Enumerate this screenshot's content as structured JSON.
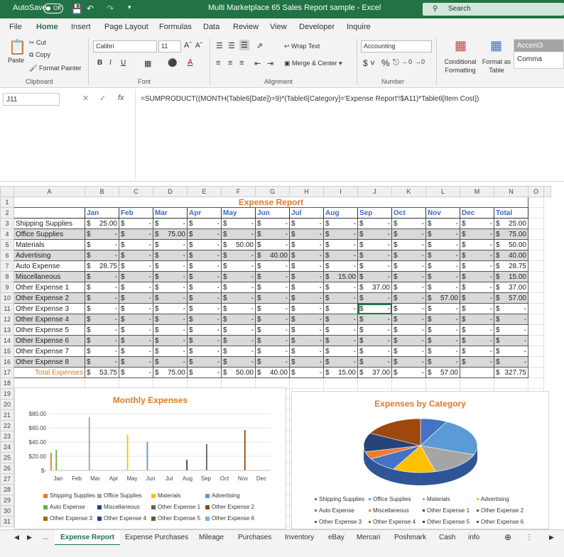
{
  "titlebar": {
    "autosave_label": "AutoSave",
    "autosave_state": "Off",
    "window_title": "Multi Marketplace 65 Sales Report sample  -  Excel",
    "search_placeholder": "Search"
  },
  "ribbon_tabs": [
    "File",
    "Home",
    "Insert",
    "Page Layout",
    "Formulas",
    "Data",
    "Review",
    "View",
    "Developer",
    "Inquire"
  ],
  "ribbon": {
    "paste": "Paste",
    "cut": "Cut",
    "copy": "Copy",
    "format_painter": "Format Painter",
    "clipboard": "Clipboard",
    "font_name": "Calibri",
    "font_size": "11",
    "bold": "B",
    "italic": "I",
    "underline": "U",
    "font_group": "Font",
    "wrap_text": "Wrap Text",
    "merge_center": "Merge & Center",
    "alignment": "Alignment",
    "number_format": "Accounting",
    "number": "Number",
    "conditional_formatting": "Conditional Formatting",
    "format_as_table": "Format as Table",
    "style_accent": "Accent3",
    "style_comma": "Comma"
  },
  "formula_bar": {
    "cell_ref": "J11",
    "fx": "fx",
    "formula": "=SUMPRODUCT((MONTH(Table6[Date])=9)*(Table6[Category]='Expense Report'!$A11)*Table6[Item Cost])"
  },
  "columns": [
    "A",
    "B",
    "C",
    "D",
    "E",
    "F",
    "G",
    "H",
    "I",
    "J",
    "K",
    "L",
    "M",
    "N",
    "O"
  ],
  "sheet": {
    "title": "Expense Report",
    "months": [
      "Jan",
      "Feb",
      "Mar",
      "Apr",
      "May",
      "Jun",
      "Jul",
      "Aug",
      "Sep",
      "Oct",
      "Nov",
      "Dec"
    ],
    "total_header": "Total",
    "rows": [
      {
        "cat": "Shipping Supplies",
        "vals": [
          "25.00",
          "-",
          "-",
          "-",
          "-",
          "-",
          "-",
          "-",
          "-",
          "-",
          "-",
          "-"
        ],
        "total": "25.00"
      },
      {
        "cat": "Office Supplies",
        "vals": [
          "-",
          "-",
          "75.00",
          "-",
          "-",
          "-",
          "-",
          "-",
          "-",
          "-",
          "-",
          "-"
        ],
        "total": "75.00"
      },
      {
        "cat": "Materials",
        "vals": [
          "-",
          "-",
          "-",
          "-",
          "50.00",
          "-",
          "-",
          "-",
          "-",
          "-",
          "-",
          "-"
        ],
        "total": "50.00"
      },
      {
        "cat": "Advertising",
        "vals": [
          "-",
          "-",
          "-",
          "-",
          "-",
          "40.00",
          "-",
          "-",
          "-",
          "-",
          "-",
          "-"
        ],
        "total": "40.00"
      },
      {
        "cat": "Auto Expense",
        "vals": [
          "28.75",
          "-",
          "-",
          "-",
          "-",
          "-",
          "-",
          "-",
          "-",
          "-",
          "-",
          "-"
        ],
        "total": "28.75"
      },
      {
        "cat": "Miscellaneous",
        "vals": [
          "-",
          "-",
          "-",
          "-",
          "-",
          "-",
          "-",
          "15.00",
          "-",
          "-",
          "-",
          "-"
        ],
        "total": "15.00"
      },
      {
        "cat": "Other Expense 1",
        "vals": [
          "-",
          "-",
          "-",
          "-",
          "-",
          "-",
          "-",
          "-",
          "37.00",
          "-",
          "-",
          "-"
        ],
        "total": "37.00"
      },
      {
        "cat": "Other Expense 2",
        "vals": [
          "-",
          "-",
          "-",
          "-",
          "-",
          "-",
          "-",
          "-",
          "-",
          "-",
          "57.00",
          "-"
        ],
        "total": "57.00"
      },
      {
        "cat": "Other Expense 3",
        "vals": [
          "-",
          "-",
          "-",
          "-",
          "-",
          "-",
          "-",
          "-",
          "-",
          "-",
          "-",
          "-"
        ],
        "total": "-"
      },
      {
        "cat": "Other Expense 4",
        "vals": [
          "-",
          "-",
          "-",
          "-",
          "-",
          "-",
          "-",
          "-",
          "-",
          "-",
          "-",
          "-"
        ],
        "total": "-"
      },
      {
        "cat": "Other Expense 5",
        "vals": [
          "-",
          "-",
          "-",
          "-",
          "-",
          "-",
          "-",
          "-",
          "-",
          "-",
          "-",
          "-"
        ],
        "total": "-"
      },
      {
        "cat": "Other Expense 6",
        "vals": [
          "-",
          "-",
          "-",
          "-",
          "-",
          "-",
          "-",
          "-",
          "-",
          "-",
          "-",
          "-"
        ],
        "total": "-"
      },
      {
        "cat": "Other Expense 7",
        "vals": [
          "-",
          "-",
          "-",
          "-",
          "-",
          "-",
          "-",
          "-",
          "-",
          "-",
          "-",
          "-"
        ],
        "total": "-"
      },
      {
        "cat": "Other Expense 8",
        "vals": [
          "-",
          "-",
          "-",
          "-",
          "-",
          "-",
          "-",
          "-",
          "-",
          "-",
          "-",
          "-"
        ],
        "total": "-"
      }
    ],
    "total_label": "Total Expenses",
    "totals": [
      "53.75",
      "-",
      "75.00",
      "-",
      "50.00",
      "40.00",
      "-",
      "15.00",
      "37.00",
      "-",
      "57.00",
      ""
    ],
    "grand_total": "327.75",
    "currency": "$"
  },
  "chart_data": [
    {
      "type": "bar",
      "title": "Monthly Expenses",
      "categories": [
        "Jan",
        "Feb",
        "Mar",
        "Apr",
        "May",
        "Jun",
        "Jul",
        "Aug",
        "Sep",
        "Oct",
        "Nov",
        "Dec"
      ],
      "y_ticks": [
        "$80.00",
        "$60.00",
        "$40.00",
        "$20.00",
        "$-"
      ],
      "ylim": [
        0,
        80
      ],
      "series": [
        {
          "name": "Shipping Supplies",
          "color": "#ed7d31",
          "values": [
            25,
            0,
            0,
            0,
            0,
            0,
            0,
            0,
            0,
            0,
            0,
            0
          ]
        },
        {
          "name": "Office Supplies",
          "color": "#a5a5a5",
          "values": [
            0,
            0,
            75,
            0,
            0,
            0,
            0,
            0,
            0,
            0,
            0,
            0
          ]
        },
        {
          "name": "Materials",
          "color": "#ffc000",
          "values": [
            0,
            0,
            0,
            0,
            50,
            0,
            0,
            0,
            0,
            0,
            0,
            0
          ]
        },
        {
          "name": "Advertising",
          "color": "#5b9bd5",
          "values": [
            0,
            0,
            0,
            0,
            0,
            40,
            0,
            0,
            0,
            0,
            0,
            0
          ]
        },
        {
          "name": "Auto Expense",
          "color": "#70ad47",
          "values": [
            28.75,
            0,
            0,
            0,
            0,
            0,
            0,
            0,
            0,
            0,
            0,
            0
          ]
        },
        {
          "name": "Miscellaneous",
          "color": "#264478",
          "values": [
            0,
            0,
            0,
            0,
            0,
            0,
            0,
            15,
            0,
            0,
            0,
            0
          ]
        },
        {
          "name": "Other Expense 1",
          "color": "#636363",
          "values": [
            0,
            0,
            0,
            0,
            0,
            0,
            0,
            0,
            37,
            0,
            0,
            0
          ]
        },
        {
          "name": "Other Expense 2",
          "color": "#9e480e",
          "values": [
            0,
            0,
            0,
            0,
            0,
            0,
            0,
            0,
            0,
            0,
            57,
            0
          ]
        },
        {
          "name": "Other Expense 3",
          "color": "#997300",
          "values": [
            0,
            0,
            0,
            0,
            0,
            0,
            0,
            0,
            0,
            0,
            0,
            0
          ]
        },
        {
          "name": "Other Expense 4",
          "color": "#264478",
          "values": [
            0,
            0,
            0,
            0,
            0,
            0,
            0,
            0,
            0,
            0,
            0,
            0
          ]
        },
        {
          "name": "Other Expense 5",
          "color": "#43682b",
          "values": [
            0,
            0,
            0,
            0,
            0,
            0,
            0,
            0,
            0,
            0,
            0,
            0
          ]
        },
        {
          "name": "Other Expense 6",
          "color": "#7cafdd",
          "values": [
            0,
            0,
            0,
            0,
            0,
            0,
            0,
            0,
            0,
            0,
            0,
            0
          ]
        }
      ]
    },
    {
      "type": "pie",
      "title": "Expenses by Category",
      "slices": [
        {
          "label": "Shipping Supplies",
          "value": 25,
          "color": "#4472c4"
        },
        {
          "label": "Office Supplies",
          "value": 75,
          "color": "#5b9bd5"
        },
        {
          "label": "Materials",
          "value": 50,
          "color": "#a5a5a5"
        },
        {
          "label": "Advertising",
          "value": 40,
          "color": "#ffc000"
        },
        {
          "label": "Auto Expense",
          "value": 28.75,
          "color": "#4472c4"
        },
        {
          "label": "Miscellaneous",
          "value": 15,
          "color": "#ed7d31"
        },
        {
          "label": "Other Expense 1",
          "value": 37,
          "color": "#264478"
        },
        {
          "label": "Other Expense 2",
          "value": 57,
          "color": "#9e480e"
        },
        {
          "label": "Other Expense 3",
          "value": 0,
          "color": "#636363"
        },
        {
          "label": "Other Expense 4",
          "value": 0,
          "color": "#997300"
        },
        {
          "label": "Other Expense 5",
          "value": 0,
          "color": "#264478"
        },
        {
          "label": "Other Expense 6",
          "value": 0,
          "color": "#43682b"
        }
      ]
    }
  ],
  "sheet_tabs": [
    "Expense Report",
    "Expense Purchases",
    "Mileage",
    "Purchases",
    "Inventory",
    "eBay",
    "Mercari",
    "Poshmark",
    "Cash",
    "info"
  ],
  "sheet_tabs_more": "...",
  "colors": {
    "excel_green": "#217346",
    "header_blue": "#3a6bc6",
    "title_orange": "#e07b28"
  }
}
